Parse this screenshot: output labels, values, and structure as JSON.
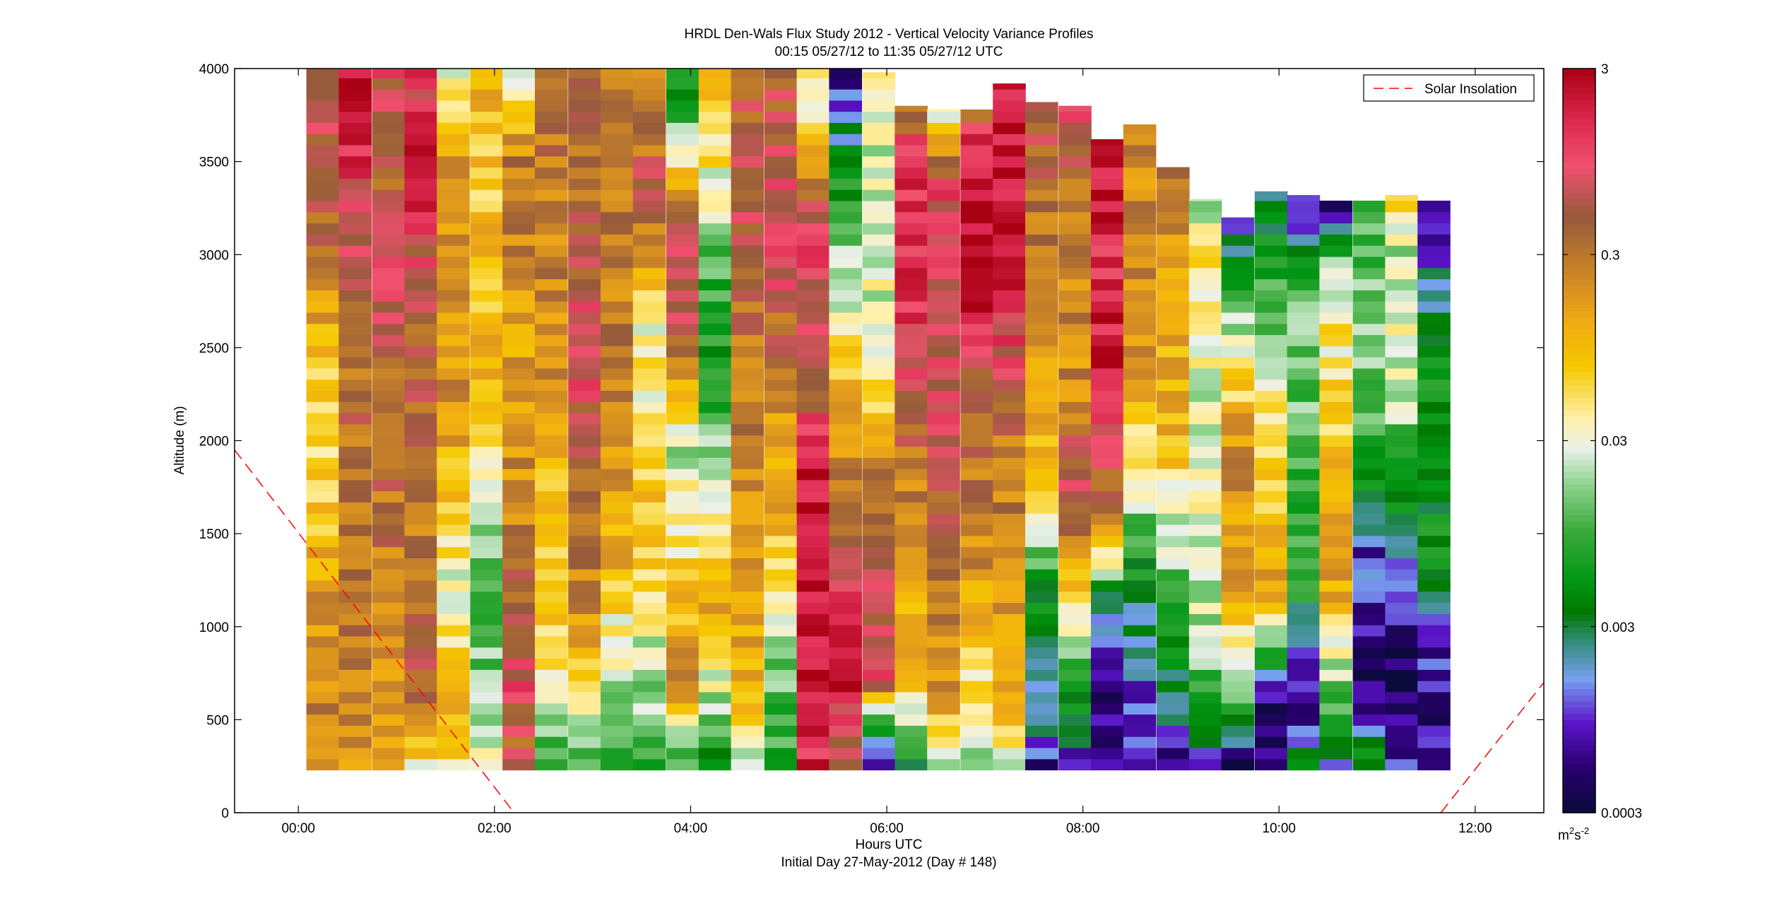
{
  "chart_data": {
    "type": "heatmap",
    "title": "HRDL Den-Wals Flux Study 2012 - Vertical Velocity Variance Profiles",
    "subtitle": "00:15 05/27/12 to 11:35 05/27/12  UTC",
    "xlabel": "Hours UTC",
    "xlabel2": "Initial Day 27-May-2012 (Day # 148)",
    "ylabel": "Altitude (m)",
    "xlim": [
      -0.65,
      12.7
    ],
    "ylim": [
      0,
      4000
    ],
    "x_ticks": [
      {
        "v": 0,
        "label": "00:00"
      },
      {
        "v": 2,
        "label": "02:00"
      },
      {
        "v": 4,
        "label": "04:00"
      },
      {
        "v": 6,
        "label": "06:00"
      },
      {
        "v": 8,
        "label": "08:00"
      },
      {
        "v": 10,
        "label": "10:00"
      },
      {
        "v": 12,
        "label": "12:00"
      }
    ],
    "y_ticks": [
      {
        "v": 0,
        "label": "0"
      },
      {
        "v": 500,
        "label": "500"
      },
      {
        "v": 1000,
        "label": "1000"
      },
      {
        "v": 1500,
        "label": "1500"
      },
      {
        "v": 2000,
        "label": "2000"
      },
      {
        "v": 2500,
        "label": "2500"
      },
      {
        "v": 3000,
        "label": "3000"
      },
      {
        "v": 3500,
        "label": "3500"
      },
      {
        "v": 4000,
        "label": "4000"
      }
    ],
    "colorbar": {
      "scale": "log",
      "range": [
        0.0003,
        3
      ],
      "ticks": [
        {
          "v": 3,
          "label": "3"
        },
        {
          "v": 0.3,
          "label": "0.3"
        },
        {
          "v": 0.03,
          "label": "0.03"
        },
        {
          "v": 0.003,
          "label": "0.003"
        },
        {
          "v": 0.0003,
          "label": "0.0003"
        }
      ],
      "unit_base": "m",
      "unit_exp1": "2",
      "unit_mid": "s",
      "unit_exp2": "-2"
    },
    "legend": {
      "placement": "top-right",
      "entries": [
        {
          "name": "Solar Insolation",
          "color": "#ff0000",
          "style": "dashed"
        }
      ]
    },
    "gate_bottom_m": 230,
    "profiles": [
      {
        "t": 0.25,
        "top": 4000,
        "segs": [
          [
            230,
            0.3
          ],
          [
            1000,
            0.2
          ],
          [
            1600,
            0.08
          ],
          [
            2200,
            0.05
          ],
          [
            3000,
            0.3
          ],
          [
            3600,
            0.5
          ],
          [
            4000,
            0.5
          ]
        ]
      },
      {
        "t": 0.58,
        "top": 4000,
        "segs": [
          [
            230,
            0.06
          ],
          [
            400,
            0.2
          ],
          [
            1000,
            0.3
          ],
          [
            2500,
            0.4
          ],
          [
            3000,
            0.5
          ],
          [
            3700,
            2.0
          ],
          [
            4000,
            2.0
          ]
        ]
      },
      {
        "t": 0.92,
        "top": 4000,
        "segs": [
          [
            230,
            0.1
          ],
          [
            600,
            0.2
          ],
          [
            1400,
            0.3
          ],
          [
            2500,
            0.5
          ],
          [
            3100,
            0.8
          ],
          [
            3500,
            0.4
          ],
          [
            4000,
            0.8
          ]
        ]
      },
      {
        "t": 1.25,
        "top": 4000,
        "segs": [
          [
            230,
            0.04
          ],
          [
            500,
            0.2
          ],
          [
            900,
            0.6
          ],
          [
            1400,
            0.3
          ],
          [
            2800,
            0.5
          ],
          [
            3500,
            2.0
          ],
          [
            4000,
            1.0
          ]
        ]
      },
      {
        "t": 1.58,
        "top": 4000,
        "segs": [
          [
            230,
            0.05
          ],
          [
            500,
            0.1
          ],
          [
            1200,
            0.03
          ],
          [
            1800,
            0.1
          ],
          [
            2300,
            0.2
          ],
          [
            3500,
            0.2
          ],
          [
            4000,
            0.03
          ]
        ]
      },
      {
        "t": 1.92,
        "top": 4000,
        "segs": [
          [
            230,
            0.04
          ],
          [
            600,
            0.02
          ],
          [
            1200,
            0.008
          ],
          [
            1700,
            0.03
          ],
          [
            2100,
            0.1
          ],
          [
            3500,
            0.08
          ],
          [
            4000,
            0.1
          ]
        ]
      },
      {
        "t": 2.25,
        "top": 4000,
        "segs": [
          [
            230,
            0.4
          ],
          [
            700,
            0.8
          ],
          [
            1400,
            0.3
          ],
          [
            1900,
            0.2
          ],
          [
            2500,
            0.15
          ],
          [
            3500,
            0.3
          ],
          [
            4000,
            0.02
          ]
        ]
      },
      {
        "t": 2.58,
        "top": 4000,
        "segs": [
          [
            230,
            0.008
          ],
          [
            600,
            0.03
          ],
          [
            1100,
            0.07
          ],
          [
            1700,
            0.1
          ],
          [
            2500,
            0.2
          ],
          [
            3500,
            0.3
          ],
          [
            4000,
            0.3
          ]
        ]
      },
      {
        "t": 2.92,
        "top": 4000,
        "segs": [
          [
            230,
            0.01
          ],
          [
            600,
            0.05
          ],
          [
            1000,
            0.2
          ],
          [
            1700,
            0.3
          ],
          [
            2400,
            1.0
          ],
          [
            3200,
            0.4
          ],
          [
            4000,
            0.3
          ]
        ]
      },
      {
        "t": 3.25,
        "top": 4000,
        "segs": [
          [
            230,
            0.006
          ],
          [
            900,
            0.03
          ],
          [
            1300,
            0.1
          ],
          [
            2000,
            0.2
          ],
          [
            3000,
            0.3
          ],
          [
            4000,
            0.2
          ]
        ]
      },
      {
        "t": 3.58,
        "top": 4000,
        "segs": [
          [
            230,
            0.01
          ],
          [
            800,
            0.02
          ],
          [
            1200,
            0.05
          ],
          [
            1800,
            0.08
          ],
          [
            2600,
            0.03
          ],
          [
            3300,
            0.6
          ],
          [
            4000,
            0.15
          ]
        ]
      },
      {
        "t": 3.92,
        "top": 4000,
        "segs": [
          [
            230,
            0.008
          ],
          [
            700,
            0.2
          ],
          [
            1300,
            0.06
          ],
          [
            2000,
            0.02
          ],
          [
            2600,
            0.6
          ],
          [
            3100,
            0.8
          ],
          [
            3800,
            0.006
          ],
          [
            4000,
            0.01
          ]
        ]
      },
      {
        "t": 4.25,
        "top": 4000,
        "segs": [
          [
            230,
            0.003
          ],
          [
            700,
            0.03
          ],
          [
            1100,
            0.15
          ],
          [
            1600,
            0.05
          ],
          [
            2300,
            0.005
          ],
          [
            2900,
            0.01
          ],
          [
            3300,
            0.03
          ],
          [
            4000,
            0.1
          ]
        ]
      },
      {
        "t": 4.58,
        "top": 4000,
        "segs": [
          [
            230,
            0.02
          ],
          [
            600,
            0.1
          ],
          [
            1000,
            0.15
          ],
          [
            1600,
            0.2
          ],
          [
            2400,
            0.3
          ],
          [
            3300,
            0.6
          ],
          [
            4000,
            0.4
          ]
        ]
      },
      {
        "t": 4.92,
        "top": 4000,
        "segs": [
          [
            230,
            0.006
          ],
          [
            900,
            0.02
          ],
          [
            1400,
            0.08
          ],
          [
            2200,
            0.2
          ],
          [
            3000,
            0.8
          ],
          [
            3700,
            0.6
          ],
          [
            4000,
            0.5
          ]
        ]
      },
      {
        "t": 5.25,
        "top": 4000,
        "segs": [
          [
            230,
            1.5
          ],
          [
            700,
            2.5
          ],
          [
            1900,
            2.0
          ],
          [
            2300,
            0.5
          ],
          [
            3100,
            1.0
          ],
          [
            3700,
            0.06
          ],
          [
            4000,
            0.03
          ]
        ]
      },
      {
        "t": 5.58,
        "top": 4000,
        "segs": [
          [
            230,
            0.3
          ],
          [
            500,
            0.8
          ],
          [
            700,
            2.5
          ],
          [
            1800,
            0.3
          ],
          [
            2300,
            0.1
          ],
          [
            3400,
            0.006
          ],
          [
            3900,
            0.001
          ],
          [
            4000,
            0.0006
          ]
        ]
      },
      {
        "t": 5.92,
        "top": 3980,
        "segs": [
          [
            230,
            0.0005
          ],
          [
            500,
            0.005
          ],
          [
            700,
            0.8
          ],
          [
            1500,
            0.6
          ],
          [
            2300,
            0.06
          ],
          [
            3000,
            0.02
          ],
          [
            3800,
            0.03
          ],
          [
            3980,
            0.03
          ]
        ]
      },
      {
        "t": 6.25,
        "top": 3800,
        "segs": [
          [
            230,
            0.0008
          ],
          [
            300,
            0.01
          ],
          [
            700,
            0.08
          ],
          [
            1600,
            0.2
          ],
          [
            2500,
            1.0
          ],
          [
            3400,
            1.5
          ],
          [
            3800,
            0.4
          ]
        ]
      },
      {
        "t": 6.58,
        "top": 3780,
        "segs": [
          [
            230,
            0.008
          ],
          [
            600,
            0.2
          ],
          [
            1200,
            0.3
          ],
          [
            1900,
            0.6
          ],
          [
            2700,
            0.8
          ],
          [
            3400,
            0.9
          ],
          [
            3780,
            0.03
          ]
        ]
      },
      {
        "t": 6.92,
        "top": 3780,
        "segs": [
          [
            230,
            0.02
          ],
          [
            800,
            0.06
          ],
          [
            1300,
            0.2
          ],
          [
            2200,
            0.4
          ],
          [
            2700,
            2.0
          ],
          [
            3600,
            2.0
          ],
          [
            3780,
            0.3
          ]
        ]
      },
      {
        "t": 7.25,
        "top": 3920,
        "segs": [
          [
            230,
            0.03
          ],
          [
            700,
            0.15
          ],
          [
            1200,
            0.2
          ],
          [
            2000,
            0.3
          ],
          [
            3000,
            2.5
          ],
          [
            3900,
            2.0
          ],
          [
            3920,
            2.5
          ]
        ]
      },
      {
        "t": 7.58,
        "top": 3820,
        "segs": [
          [
            230,
            0.0007
          ],
          [
            500,
            0.002
          ],
          [
            1200,
            0.004
          ],
          [
            1800,
            0.1
          ],
          [
            2500,
            0.2
          ],
          [
            3400,
            0.4
          ],
          [
            3820,
            0.6
          ]
        ]
      },
      {
        "t": 7.92,
        "top": 3800,
        "segs": [
          [
            230,
            0.0008
          ],
          [
            600,
            0.005
          ],
          [
            1400,
            0.2
          ],
          [
            1800,
            0.8
          ],
          [
            2200,
            0.2
          ],
          [
            3300,
            0.3
          ],
          [
            3800,
            1.0
          ]
        ]
      },
      {
        "t": 8.25,
        "top": 3620,
        "segs": [
          [
            230,
            0.001
          ],
          [
            800,
            0.0004
          ],
          [
            1200,
            0.005
          ],
          [
            1500,
            0.2
          ],
          [
            2500,
            2.0
          ],
          [
            3000,
            1.5
          ],
          [
            3620,
            2.5
          ]
        ]
      },
      {
        "t": 8.58,
        "top": 3700,
        "segs": [
          [
            230,
            0.0008
          ],
          [
            600,
            0.001
          ],
          [
            1300,
            0.005
          ],
          [
            1700,
            0.02
          ],
          [
            2300,
            0.15
          ],
          [
            3000,
            0.2
          ],
          [
            3600,
            0.2
          ]
        ]
      },
      {
        "t": 8.92,
        "top": 3470,
        "segs": [
          [
            230,
            0.0006
          ],
          [
            800,
            0.004
          ],
          [
            1200,
            0.01
          ],
          [
            1600,
            0.03
          ],
          [
            2000,
            0.1
          ],
          [
            3000,
            0.15
          ],
          [
            3470,
            0.3
          ]
        ]
      },
      {
        "t": 9.25,
        "top": 3300,
        "segs": [
          [
            230,
            0.001
          ],
          [
            500,
            0.006
          ],
          [
            1000,
            0.02
          ],
          [
            1500,
            0.03
          ],
          [
            2300,
            0.03
          ],
          [
            3000,
            0.05
          ],
          [
            3300,
            0.02
          ]
        ]
      },
      {
        "t": 9.58,
        "top": 3200,
        "segs": [
          [
            230,
            0.0004
          ],
          [
            600,
            0.008
          ],
          [
            1200,
            0.15
          ],
          [
            2000,
            0.2
          ],
          [
            2900,
            0.006
          ],
          [
            3200,
            0.001
          ]
        ]
      },
      {
        "t": 9.92,
        "top": 3340,
        "segs": [
          [
            230,
            0.0005
          ],
          [
            600,
            0.0006
          ],
          [
            1200,
            0.15
          ],
          [
            2100,
            0.05
          ],
          [
            2800,
            0.01
          ],
          [
            3340,
            0.002
          ]
        ]
      },
      {
        "t": 10.25,
        "top": 3320,
        "segs": [
          [
            230,
            0.004
          ],
          [
            600,
            0.0005
          ],
          [
            1200,
            0.006
          ],
          [
            1900,
            0.01
          ],
          [
            2700,
            0.02
          ],
          [
            3320,
            0.0006
          ]
        ]
      },
      {
        "t": 10.58,
        "top": 3290,
        "segs": [
          [
            230,
            0.0015
          ],
          [
            500,
            0.006
          ],
          [
            1300,
            0.2
          ],
          [
            2000,
            0.08
          ],
          [
            2900,
            0.03
          ],
          [
            3290,
            0.0005
          ]
        ]
      },
      {
        "t": 10.92,
        "top": 3290,
        "segs": [
          [
            230,
            0.008
          ],
          [
            600,
            0.0005
          ],
          [
            1400,
            0.001
          ],
          [
            1800,
            0.005
          ],
          [
            2500,
            0.02
          ],
          [
            3290,
            0.008
          ]
        ]
      },
      {
        "t": 11.25,
        "top": 3320,
        "segs": [
          [
            230,
            0.0008
          ],
          [
            800,
            0.0004
          ],
          [
            1600,
            0.004
          ],
          [
            2300,
            0.03
          ],
          [
            3000,
            0.02
          ],
          [
            3320,
            0.06
          ]
        ]
      },
      {
        "t": 11.58,
        "top": 3290,
        "segs": [
          [
            230,
            0.0006
          ],
          [
            900,
            0.0008
          ],
          [
            1300,
            0.004
          ],
          [
            2000,
            0.006
          ],
          [
            2600,
            0.005
          ],
          [
            3290,
            0.0004
          ]
        ]
      }
    ],
    "solar_insolation": {
      "segments": [
        {
          "x": [
            -0.65,
            2.2
          ],
          "y": [
            1950,
            0
          ]
        },
        {
          "x": [
            11.65,
            12.7
          ],
          "y": [
            0,
            700
          ]
        }
      ]
    }
  }
}
